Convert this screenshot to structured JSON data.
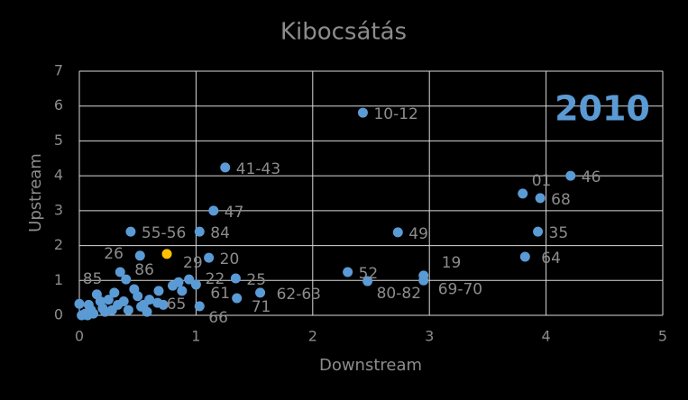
{
  "chart_data": {
    "type": "scatter",
    "title": "Kibocsátás",
    "xlabel": "Downstream",
    "ylabel": "Upstream",
    "annotation": "2010",
    "color": "#5b9bd5",
    "annotation_color": "#5b9bd5",
    "highlight_index": 11,
    "highlight_color": "#ffc000",
    "xlim": [
      0,
      5
    ],
    "ylim": [
      0,
      7
    ],
    "xticks": [
      0,
      1,
      2,
      3,
      4,
      5
    ],
    "yticks": [
      0,
      1,
      2,
      3,
      4,
      5,
      6,
      7
    ],
    "grid": true,
    "x": [
      2.43,
      1.25,
      4.21,
      3.8,
      3.95,
      1.15,
      0.44,
      1.03,
      2.73,
      3.93,
      0.52,
      0.75,
      1.11,
      3.82,
      2.3,
      2.95,
      0.35,
      0.4,
      0.94,
      1.34,
      2.47,
      2.95,
      1.0,
      1.55,
      1.35,
      0.67,
      1.03,
      0.0,
      0.05,
      0.02,
      0.08,
      0.1,
      0.12,
      0.15,
      0.18,
      0.2,
      0.22,
      0.25,
      0.28,
      0.3,
      0.33,
      0.38,
      0.42,
      0.47,
      0.5,
      0.53,
      0.58,
      0.6,
      0.68,
      0.72,
      0.8,
      0.85,
      0.88,
      0.55,
      0.07
    ],
    "values": [
      5.81,
      4.24,
      4.0,
      3.49,
      3.36,
      3.0,
      2.4,
      2.4,
      2.38,
      2.4,
      1.71,
      1.76,
      1.65,
      1.68,
      1.24,
      1.14,
      1.24,
      1.03,
      1.03,
      1.06,
      0.98,
      1.0,
      0.88,
      0.65,
      0.49,
      0.36,
      0.26,
      0.33,
      0.05,
      0.0,
      0.3,
      0.15,
      0.05,
      0.6,
      0.4,
      0.2,
      0.1,
      0.45,
      0.15,
      0.65,
      0.3,
      0.4,
      0.15,
      0.75,
      0.55,
      0.25,
      0.1,
      0.45,
      0.7,
      0.3,
      0.85,
      0.95,
      0.7,
      0.3,
      0.0
    ],
    "point_labels": [
      "10-12",
      "41-43",
      "46",
      "01",
      "68",
      "47",
      "55-56",
      "84",
      "49",
      "35",
      "26",
      "29",
      "20",
      "64",
      "52",
      "19",
      "86",
      "85",
      "22",
      "25",
      "80-82",
      "69-70",
      "61",
      "62-63",
      "71",
      "65",
      "66",
      null,
      null,
      null,
      null,
      null,
      null,
      null,
      null,
      null,
      null,
      null,
      null,
      null,
      null,
      null,
      null,
      null,
      null,
      null,
      null,
      null,
      null,
      null,
      null,
      null,
      null,
      null,
      null
    ]
  }
}
